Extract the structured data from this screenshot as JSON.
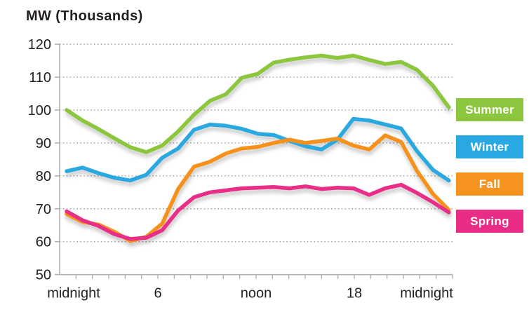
{
  "text_color": "#231F20",
  "axis_color": "#b0b0b0",
  "grid_color": "#9a9a9a",
  "chart_data": {
    "type": "line",
    "title": "MW (Thousands)",
    "x_unit": "hour of day",
    "x_range": [
      0,
      24
    ],
    "ylim": [
      50,
      120
    ],
    "yticks": [
      120,
      110,
      100,
      90,
      80,
      70,
      60,
      50
    ],
    "xticks": [
      {
        "hour": 0,
        "label": "midnight"
      },
      {
        "hour": 6,
        "label": "6"
      },
      {
        "hour": 12,
        "label": "noon"
      },
      {
        "hour": 18,
        "label": "18"
      },
      {
        "hour": 24,
        "label": "midnight"
      }
    ],
    "grid": "dotted horizontal gridlines",
    "legend_position": "right",
    "series": [
      {
        "name": "Summer",
        "color": "#8CC63E",
        "values": [
          100,
          96.8,
          94.2,
          91.4,
          88.7,
          87.2,
          89.2,
          93.5,
          98.6,
          102.8,
          104.8,
          109.8,
          111,
          114.4,
          115.3,
          116,
          116.5,
          115.8,
          116.5,
          115.2,
          114,
          114.6,
          112.2,
          107.4,
          100.8
        ]
      },
      {
        "name": "Winter",
        "color": "#29A9E1",
        "values": [
          81.4,
          82.5,
          80.8,
          79.4,
          78.6,
          80.3,
          85.5,
          88.3,
          94,
          95.6,
          95.2,
          94.3,
          92.8,
          92.4,
          90.6,
          89,
          88,
          91,
          97.3,
          96.8,
          95.6,
          94.4,
          87.5,
          81.8,
          78.6
        ]
      },
      {
        "name": "Fall",
        "color": "#F6921E",
        "values": [
          68.4,
          66,
          65.2,
          63,
          60.2,
          61.5,
          65.5,
          76,
          82.8,
          84.3,
          86.8,
          88.3,
          88.8,
          90,
          91,
          90,
          90.6,
          91.3,
          89.2,
          88,
          92.3,
          90.3,
          81.5,
          74.5,
          69.6
        ]
      },
      {
        "name": "Spring",
        "color": "#E92D87",
        "values": [
          69.2,
          66.5,
          64.8,
          62.3,
          60.8,
          61.2,
          63.5,
          69.5,
          73.5,
          75,
          75.6,
          76.2,
          76.4,
          76.6,
          76.2,
          76.8,
          76,
          76.4,
          76.2,
          74.2,
          76.2,
          77.3,
          74.8,
          72,
          68.9
        ]
      }
    ]
  }
}
